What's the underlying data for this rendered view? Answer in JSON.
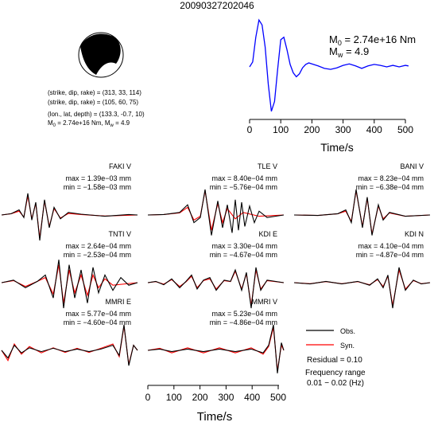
{
  "chart_data": {
    "title": "20090327202046",
    "source_time_function": {
      "type": "line",
      "xlabel": "Time/s",
      "xlim": [
        -10,
        515
      ],
      "xticks": [
        0,
        100,
        200,
        300,
        400,
        500
      ],
      "color": "#0000ff",
      "moment_label": "M",
      "moment_sub": "0",
      "moment_value": " = 2.74e+16 Nm",
      "mw_label": "M",
      "mw_sub": "w",
      "mw_value": " = 4.9",
      "x": [
        0,
        10,
        20,
        30,
        40,
        50,
        60,
        70,
        80,
        90,
        100,
        110,
        120,
        130,
        140,
        150,
        160,
        170,
        180,
        190,
        200,
        220,
        240,
        260,
        280,
        300,
        320,
        340,
        360,
        380,
        400,
        420,
        440,
        460,
        480,
        500,
        510
      ],
      "y": [
        0.0,
        0.1,
        0.6,
        0.95,
        0.85,
        0.4,
        -0.35,
        -0.9,
        -0.7,
        -0.05,
        0.55,
        0.6,
        0.35,
        0.05,
        -0.12,
        -0.2,
        -0.14,
        -0.02,
        0.05,
        0.08,
        0.06,
        0.02,
        -0.03,
        -0.05,
        -0.02,
        0.03,
        0.06,
        0.02,
        -0.03,
        0.02,
        0.05,
        0.03,
        0.0,
        0.03,
        0.0,
        0.03,
        0.02
      ]
    },
    "mechanism": {
      "line1": "(strike, dip, rake) = (313, 33, 114)",
      "line2": "(strike, dip, rake) = (105, 60, 75)",
      "line3": "(lon., lat, depth) = (133.3, -0.7, 10)",
      "line4_m": "M",
      "line4_msub": "0",
      "line4_mval": " = 2.74e+16 Nm, M",
      "line4_wsub": "w",
      "line4_wval": " = 4.9"
    },
    "waveforms": {
      "type": "line",
      "xlabel": "Time/s",
      "xlim": [
        -10,
        515
      ],
      "xticks": [
        0,
        100,
        200,
        300,
        400,
        500
      ],
      "legend": {
        "obs": "Obs.",
        "syn": "Syn."
      },
      "obs_color": "#000000",
      "syn_color": "#ff0000",
      "residual": "Residual = 0.10",
      "freq_line1": "Frequency range",
      "freq_line2": "0.01 − 0.02 (Hz)",
      "stations": [
        {
          "name": "FAKI V",
          "max": "max = 1.39e−03 mm",
          "min": "min = −1.58e−03 mm"
        },
        {
          "name": "TLE V",
          "max": "max = 8.40e−04 mm",
          "min": "min = −5.76e−04 mm"
        },
        {
          "name": "BANI V",
          "max": "max = 8.23e−04 mm",
          "min": "min = −6.38e−04 mm"
        },
        {
          "name": "TNTI V",
          "max": "max = 2.64e−04 mm",
          "min": "min = −2.53e−04 mm"
        },
        {
          "name": "KDI E",
          "max": "max = 3.30e−04 mm",
          "min": "min = −4.67e−04 mm"
        },
        {
          "name": "KDI N",
          "max": "max = 4.10e−04 mm",
          "min": "min = −4.87e−04 mm"
        },
        {
          "name": "MMRI E",
          "max": "max = 5.77e−04 mm",
          "min": "min = −4.60e−04 mm"
        },
        {
          "name": "MMRI V",
          "max": "max = 5.23e−04 mm",
          "min": "min = −4.86e−04 mm"
        }
      ]
    }
  }
}
